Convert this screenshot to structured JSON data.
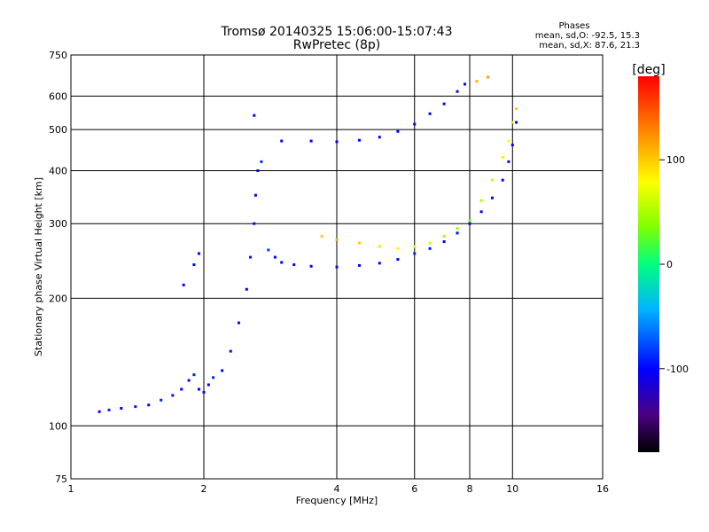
{
  "chart_data": {
    "type": "scatter",
    "title": "Tromsø 20140325 15:06:00-15:07:43",
    "subtitle": "RwPretec (8p)",
    "xlabel": "Frequency [MHz]",
    "ylabel": "Stationary phase Virtual Height [km]",
    "x_scale": "log",
    "y_scale": "log",
    "xlim": [
      1,
      16
    ],
    "ylim": [
      75,
      750
    ],
    "x_ticks": [
      1,
      2,
      4,
      6,
      8,
      10,
      16
    ],
    "y_ticks": [
      75,
      100,
      200,
      300,
      400,
      500,
      600,
      750
    ],
    "grid": true,
    "phase_legend": {
      "title": "Phases",
      "line_o": "mean, sd,O:  -92.5, 15.3",
      "line_x": "mean, sd,X:  87.6, 21.3"
    },
    "colorbar": {
      "label": "[deg]",
      "range": [
        -180,
        180
      ],
      "ticks": [
        100,
        0,
        -100
      ]
    },
    "series": [
      {
        "points": [
          [
            1.16,
            108,
            -100
          ],
          [
            1.22,
            109,
            -90
          ],
          [
            1.3,
            110,
            -100
          ],
          [
            1.4,
            111,
            -95
          ],
          [
            1.5,
            112,
            -100
          ],
          [
            1.6,
            115,
            -90
          ],
          [
            1.7,
            118,
            -95
          ],
          [
            1.78,
            122,
            -100
          ],
          [
            1.85,
            128,
            -110
          ],
          [
            1.9,
            132,
            -90
          ],
          [
            1.95,
            122,
            -100
          ],
          [
            2.0,
            120,
            -95
          ],
          [
            2.05,
            125,
            -100
          ],
          [
            2.1,
            130,
            -90
          ],
          [
            2.2,
            135,
            -100
          ],
          [
            2.3,
            150,
            -95
          ],
          [
            2.4,
            175,
            -100
          ],
          [
            2.5,
            210,
            -100
          ],
          [
            2.55,
            250,
            -95
          ],
          [
            2.6,
            300,
            -100
          ],
          [
            2.62,
            350,
            -110
          ],
          [
            2.65,
            400,
            -100
          ],
          [
            2.7,
            420,
            -90
          ],
          [
            2.6,
            540,
            -100
          ],
          [
            2.8,
            260,
            -80
          ],
          [
            2.9,
            250,
            -100
          ],
          [
            3.0,
            243,
            -100
          ],
          [
            3.2,
            240,
            -110
          ],
          [
            3.5,
            238,
            -100
          ],
          [
            4.0,
            237,
            -100
          ],
          [
            4.5,
            239,
            -100
          ],
          [
            5.0,
            242,
            -100
          ],
          [
            5.5,
            247,
            -100
          ],
          [
            6.0,
            255,
            -90
          ],
          [
            6.5,
            262,
            -95
          ],
          [
            7.0,
            272,
            -100
          ],
          [
            7.5,
            285,
            -100
          ],
          [
            8.0,
            300,
            -100
          ],
          [
            8.5,
            320,
            -100
          ],
          [
            9.0,
            345,
            -100
          ],
          [
            9.5,
            380,
            -100
          ],
          [
            9.8,
            420,
            -100
          ],
          [
            10.0,
            460,
            -100
          ],
          [
            10.2,
            520,
            -100
          ],
          [
            1.8,
            215,
            -100
          ],
          [
            1.9,
            240,
            -100
          ],
          [
            1.95,
            255,
            -100
          ]
        ]
      },
      {
        "points": [
          [
            3.0,
            470,
            -100
          ],
          [
            3.5,
            470,
            -100
          ],
          [
            4.0,
            468,
            -100
          ],
          [
            4.5,
            472,
            -100
          ],
          [
            5.0,
            480,
            -100
          ],
          [
            5.5,
            495,
            -100
          ],
          [
            6.0,
            515,
            -100
          ],
          [
            6.5,
            545,
            -100
          ],
          [
            7.0,
            575,
            -100
          ],
          [
            7.5,
            615,
            -100
          ],
          [
            7.8,
            640,
            -100
          ]
        ]
      },
      {
        "points": [
          [
            3.7,
            280,
            100
          ],
          [
            4.0,
            275,
            110
          ],
          [
            4.5,
            270,
            100
          ],
          [
            5.0,
            265,
            90
          ],
          [
            5.5,
            262,
            80
          ],
          [
            6.0,
            265,
            70
          ],
          [
            6.5,
            270,
            60
          ],
          [
            7.0,
            280,
            50
          ],
          [
            7.5,
            292,
            40
          ],
          [
            8.0,
            305,
            30
          ],
          [
            8.5,
            340,
            50
          ],
          [
            9.0,
            380,
            60
          ],
          [
            9.5,
            430,
            70
          ],
          [
            9.8,
            470,
            80
          ],
          [
            10.0,
            520,
            90
          ],
          [
            10.2,
            560,
            100
          ],
          [
            8.3,
            650,
            110
          ],
          [
            8.8,
            665,
            120
          ]
        ]
      }
    ]
  }
}
